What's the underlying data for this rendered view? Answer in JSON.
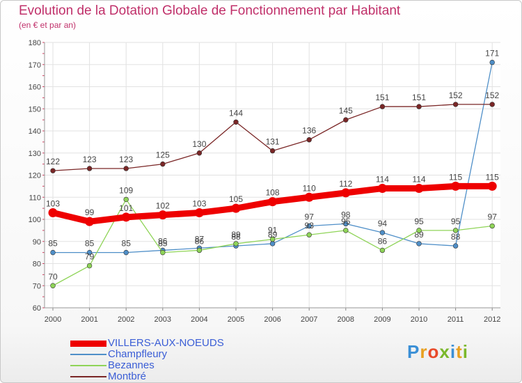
{
  "title": "Evolution de la Dotation Globale de Fonctionnement par Habitant",
  "subtitle": "(en € et par an)",
  "logo": {
    "letters": [
      {
        "char": "P",
        "color": "#3a8fd6"
      },
      {
        "char": "r",
        "color": "#e8a020"
      },
      {
        "char": "o",
        "color": "#e84a2a"
      },
      {
        "char": "x",
        "color": "#7ab82a"
      },
      {
        "char": "i",
        "color": "#3a8fd6"
      },
      {
        "char": "t",
        "color": "#e8a020"
      },
      {
        "char": "i",
        "color": "#7ab82a"
      }
    ]
  },
  "chart_data": {
    "type": "line",
    "title": "Evolution de la Dotation Globale de Fonctionnement par Habitant",
    "subtitle": "(en € et par an)",
    "x": [
      "2000",
      "2001",
      "2002",
      "2003",
      "2004",
      "2005",
      "2006",
      "2007",
      "2008",
      "2009",
      "2010",
      "2011",
      "2012"
    ],
    "yticks": [
      60,
      70,
      80,
      90,
      100,
      110,
      120,
      130,
      140,
      150,
      160,
      170,
      180
    ],
    "ylim": [
      60,
      180
    ],
    "grid": true,
    "legend_position": "bottom-left",
    "series": [
      {
        "name": "VILLERS-AUX-NOEUDS",
        "color": "#ee0000",
        "values": [
          103,
          99,
          101,
          102,
          103,
          105,
          108,
          110,
          112,
          114,
          114,
          115,
          115
        ],
        "labels": [
          "103",
          "99",
          "101",
          "102",
          "103",
          "105",
          "108",
          "110",
          "112",
          "114",
          "114",
          "115",
          "115"
        ],
        "emphasis": true
      },
      {
        "name": "Champfleury",
        "color": "#4f8fc8",
        "values": [
          85,
          85,
          85,
          86,
          87,
          88,
          89,
          97,
          98,
          94,
          89,
          88,
          171
        ],
        "labels": [
          "85",
          "85",
          "85",
          "86",
          "87",
          "88",
          "89",
          "97",
          "98",
          "94",
          "89",
          "88",
          "171"
        ],
        "emphasis": false
      },
      {
        "name": "Bezannes",
        "color": "#8fd458",
        "values": [
          70,
          79,
          109,
          85,
          86,
          89,
          91,
          93,
          95,
          86,
          95,
          95,
          97
        ],
        "labels": [
          "70",
          "79",
          "109",
          "85",
          "86",
          "89",
          "91",
          "93",
          "95",
          "86",
          "95",
          "95",
          "97"
        ],
        "emphasis": false
      },
      {
        "name": "Montbré",
        "color": "#7a2626",
        "values": [
          122,
          123,
          123,
          125,
          130,
          144,
          131,
          136,
          145,
          151,
          151,
          152,
          152
        ],
        "labels": [
          "122",
          "123",
          "123",
          "125",
          "130",
          "144",
          "131",
          "136",
          "145",
          "151",
          "151",
          "152",
          "152"
        ],
        "emphasis": false
      }
    ]
  }
}
